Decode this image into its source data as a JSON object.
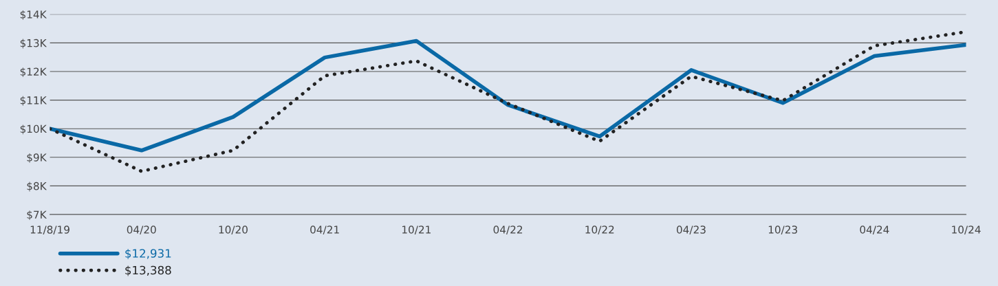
{
  "chart_data": {
    "type": "line",
    "categories": [
      "11/8/19",
      "04/20",
      "10/20",
      "04/21",
      "10/21",
      "04/22",
      "10/22",
      "04/23",
      "10/23",
      "04/24",
      "10/24"
    ],
    "series": [
      {
        "name": "$12,931",
        "color": "#0a69a6",
        "line_style": "solid",
        "values": [
          10000,
          9240,
          10410,
          12490,
          13070,
          10830,
          9730,
          12050,
          10900,
          12540,
          12931
        ]
      },
      {
        "name": "$13,388",
        "color": "#222222",
        "line_style": "dotted",
        "values": [
          10000,
          8510,
          9240,
          11850,
          12370,
          10880,
          9560,
          11830,
          10980,
          12900,
          13388
        ]
      }
    ],
    "ylim": [
      7000,
      14000
    ],
    "yticks": [
      {
        "value": 7000,
        "label": "$7K"
      },
      {
        "value": 8000,
        "label": "$8K"
      },
      {
        "value": 9000,
        "label": "$9K"
      },
      {
        "value": 10000,
        "label": "$10K"
      },
      {
        "value": 11000,
        "label": "$11K"
      },
      {
        "value": 12000,
        "label": "$12K"
      },
      {
        "value": 13000,
        "label": "$13K"
      },
      {
        "value": 14000,
        "label": "$14K"
      }
    ],
    "grid": "y",
    "legend": "bottom left",
    "marker": "none"
  }
}
